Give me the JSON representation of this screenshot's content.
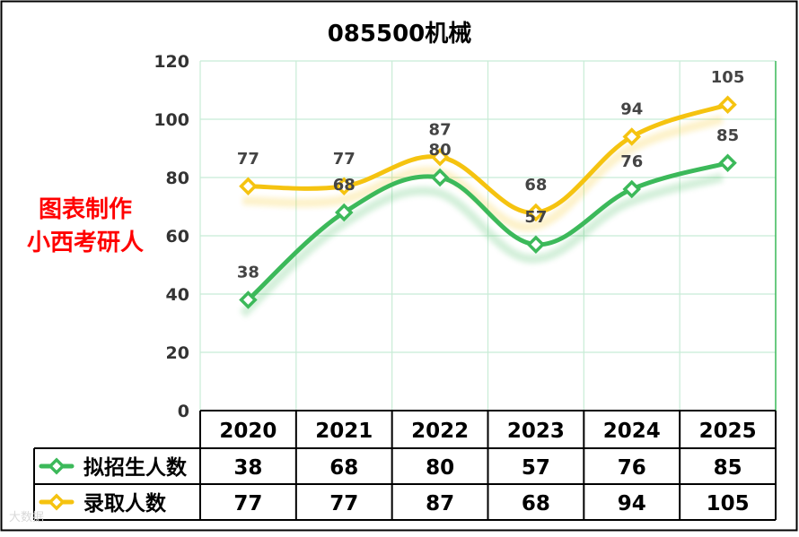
{
  "chart_data": {
    "type": "line",
    "title": "085500机械",
    "categories": [
      "2020",
      "2021",
      "2022",
      "2023",
      "2024",
      "2025"
    ],
    "ylim": [
      0,
      120
    ],
    "yticks": [
      0,
      20,
      40,
      60,
      80,
      100,
      120
    ],
    "grid": true,
    "legend": "data-table",
    "series": [
      {
        "name": "拟招生人数",
        "color": "#3cb95a",
        "values": [
          38,
          68,
          80,
          57,
          76,
          85
        ]
      },
      {
        "name": "录取人数",
        "color": "#f5c310",
        "values": [
          77,
          77,
          87,
          68,
          94,
          105
        ]
      }
    ]
  },
  "side_text": [
    "图表制作",
    "小西考研人"
  ],
  "side_text_color": "#ff0000",
  "watermark": "大数据",
  "colors": {
    "grid": "#c8ecd6",
    "frame_border": "#000000"
  }
}
